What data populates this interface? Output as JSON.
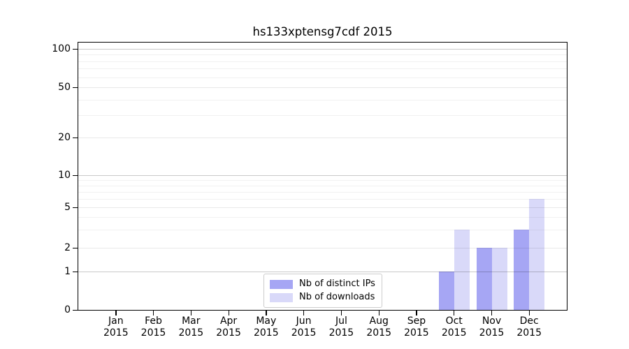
{
  "title": "hs133xptensg7cdf 2015",
  "colors": {
    "distinct_ips": "#a6a6f4",
    "downloads": "#d9d9f9",
    "axis": "#000000",
    "grid_major": "#c9c9c9",
    "grid_minor": "#ededed",
    "legend_border": "#cccccc"
  },
  "legend": {
    "items": [
      {
        "label": "Nb of distinct IPs",
        "color": "#a6a6f4"
      },
      {
        "label": "Nb of downloads",
        "color": "#d9d9f9"
      }
    ]
  },
  "y_axis": {
    "tick_labels": [
      "0",
      "1",
      "2",
      "5",
      "10",
      "20",
      "50",
      "100"
    ],
    "major_ticks": [
      0,
      1,
      2,
      5,
      10,
      20,
      50,
      100
    ],
    "minor_values": [
      3,
      4,
      6,
      7,
      8,
      9,
      30,
      40,
      60,
      70,
      80,
      90
    ]
  },
  "x_axis": {
    "months": [
      "Jan",
      "Feb",
      "Mar",
      "Apr",
      "May",
      "Jun",
      "Jul",
      "Aug",
      "Sep",
      "Oct",
      "Nov",
      "Dec"
    ],
    "year": "2015"
  },
  "chart_data": {
    "type": "bar",
    "title": "hs133xptensg7cdf 2015",
    "categories": [
      "Jan 2015",
      "Feb 2015",
      "Mar 2015",
      "Apr 2015",
      "May 2015",
      "Jun 2015",
      "Jul 2015",
      "Aug 2015",
      "Sep 2015",
      "Oct 2015",
      "Nov 2015",
      "Dec 2015"
    ],
    "series": [
      {
        "name": "Nb of distinct IPs",
        "color": "#a6a6f4",
        "values": [
          0,
          0,
          0,
          0,
          0,
          0,
          0,
          0,
          0,
          1,
          2,
          3
        ]
      },
      {
        "name": "Nb of downloads",
        "color": "#d9d9f9",
        "values": [
          0,
          0,
          0,
          0,
          0,
          0,
          0,
          0,
          0,
          3,
          2,
          6
        ]
      }
    ],
    "xlabel": "",
    "ylabel": "",
    "yscale": "log-symlog (0 at baseline)",
    "yticks": [
      0,
      1,
      2,
      5,
      10,
      20,
      50,
      100
    ],
    "ylim": [
      0,
      110
    ],
    "grid": true,
    "legend_position": "lower center inside plot"
  }
}
